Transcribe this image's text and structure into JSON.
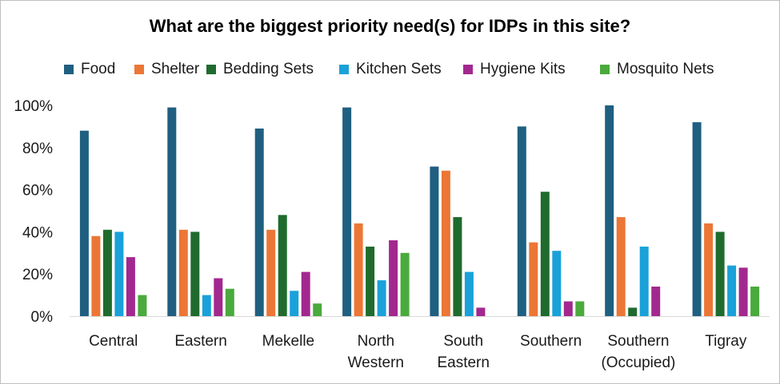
{
  "colors": {
    "Food": "#1f5f80",
    "Shelter": "#ec7635",
    "Bedding Sets": "#1f6b2e",
    "Kitchen Sets": "#1aa1d9",
    "Hygiene Kits": "#a2288f",
    "Mosquito Nets": "#4aaa3c",
    "axis": "#d9d9d9"
  },
  "chart_data": {
    "type": "bar",
    "title": "What are the biggest priority need(s) for IDPs in this site?",
    "legend_position": "top",
    "grid": false,
    "ylim": [
      0,
      100
    ],
    "y_ticks": [
      "0%",
      "20%",
      "40%",
      "60%",
      "80%",
      "100%"
    ],
    "categories": [
      "Central",
      "Eastern",
      "Mekelle",
      "North Western",
      "South Eastern",
      "Southern",
      "Southern (Occupied)",
      "Tigray"
    ],
    "category_lines": [
      [
        "Central"
      ],
      [
        "Eastern"
      ],
      [
        "Mekelle"
      ],
      [
        "North",
        "Western"
      ],
      [
        "South",
        "Eastern"
      ],
      [
        "Southern"
      ],
      [
        "Southern",
        "(Occupied)"
      ],
      [
        "Tigray"
      ]
    ],
    "series": [
      {
        "name": "Food",
        "values": [
          88,
          99,
          89,
          99,
          71,
          90,
          100,
          92
        ]
      },
      {
        "name": "Shelter",
        "values": [
          38,
          41,
          41,
          44,
          69,
          35,
          47,
          44
        ]
      },
      {
        "name": "Bedding Sets",
        "values": [
          41,
          40,
          48,
          33,
          47,
          59,
          4,
          40
        ]
      },
      {
        "name": "Kitchen Sets",
        "values": [
          40,
          10,
          12,
          17,
          21,
          31,
          33,
          24
        ]
      },
      {
        "name": "Hygiene Kits",
        "values": [
          28,
          18,
          21,
          36,
          4,
          7,
          14,
          23
        ]
      },
      {
        "name": "Mosquito Nets",
        "values": [
          10,
          13,
          6,
          30,
          0,
          7,
          0,
          14
        ]
      }
    ]
  }
}
